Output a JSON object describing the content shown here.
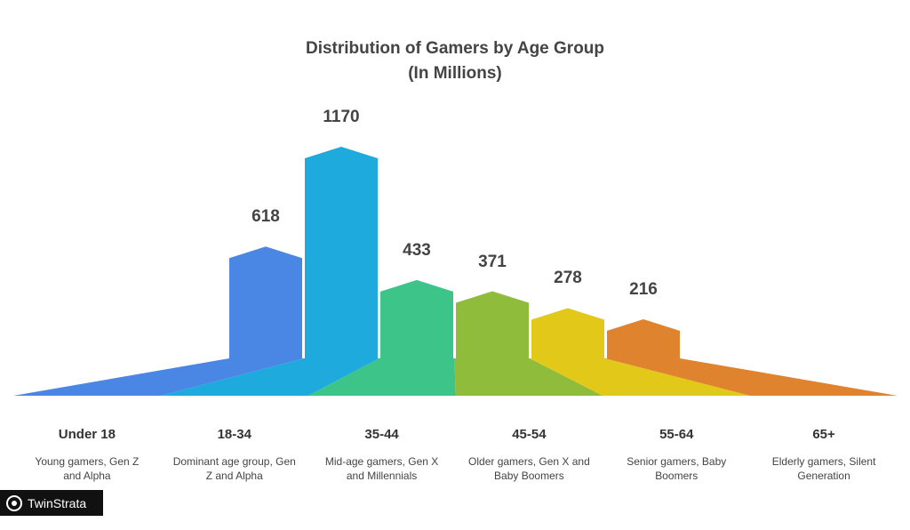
{
  "chart_data": {
    "type": "bar",
    "title": "Distribution of Gamers by Age Group",
    "subtitle": "(In Millions)",
    "categories": [
      "Under 18",
      "18-34",
      "35-44",
      "45-54",
      "55-64",
      "65+"
    ],
    "descriptions": [
      "Young gamers, Gen Z and Alpha",
      "Dominant age group, Gen Z and Alpha",
      "Mid-age gamers, Gen X and Millennials",
      "Older gamers, Gen X and Baby Boomers",
      "Senior gamers, Baby Boomers",
      "Elderly gamers, Silent Generation"
    ],
    "values": [
      618,
      1170,
      433,
      371,
      278,
      216
    ],
    "colors": [
      "#4a86e4",
      "#1eaadc",
      "#3cc489",
      "#8fbc3a",
      "#e2c919",
      "#e0832f"
    ]
  },
  "watermark": {
    "text": "TwinStrata"
  }
}
